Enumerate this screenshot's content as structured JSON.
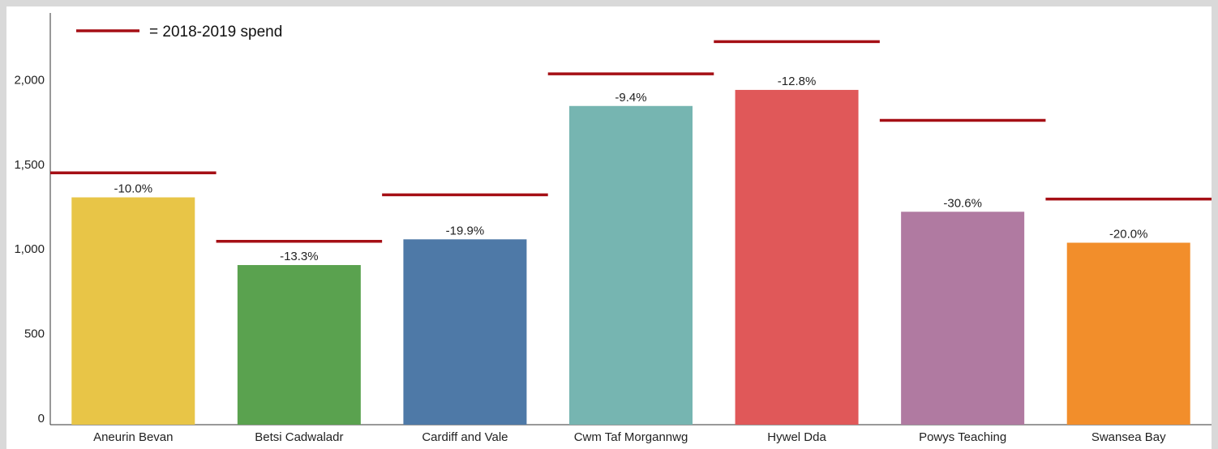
{
  "chart_data": {
    "type": "bar",
    "categories": [
      "Aneurin Bevan",
      "Betsi Cadwaladr",
      "Cardiff and Vale",
      "Cwm Taf Morgannwg",
      "Hywel Dda",
      "Powys Teaching",
      "Swansea Bay"
    ],
    "values": [
      1305,
      905,
      1057,
      1845,
      1940,
      1220,
      1037
    ],
    "bar_colors": [
      "#e8c547",
      "#5aa24f",
      "#4e79a7",
      "#76b5b1",
      "#e05859",
      "#b07aa1",
      "#f28e2b"
    ],
    "percent_labels": [
      "-10.0%",
      "-13.3%",
      "-19.9%",
      "-9.4%",
      "-12.8%",
      "-30.6%",
      "-20.0%"
    ],
    "reference_series": {
      "name": "= 2018-2019 spend",
      "values": [
        1450,
        1045,
        1320,
        2035,
        2225,
        1760,
        1295
      ],
      "color": "#a50f15"
    },
    "yticks": [
      "0",
      "500",
      "1,000",
      "1,500",
      "2,000"
    ],
    "ylim": [
      0,
      2400
    ],
    "title": "",
    "xlabel": "",
    "ylabel": "",
    "legend_position": "top-left",
    "grid": false
  }
}
